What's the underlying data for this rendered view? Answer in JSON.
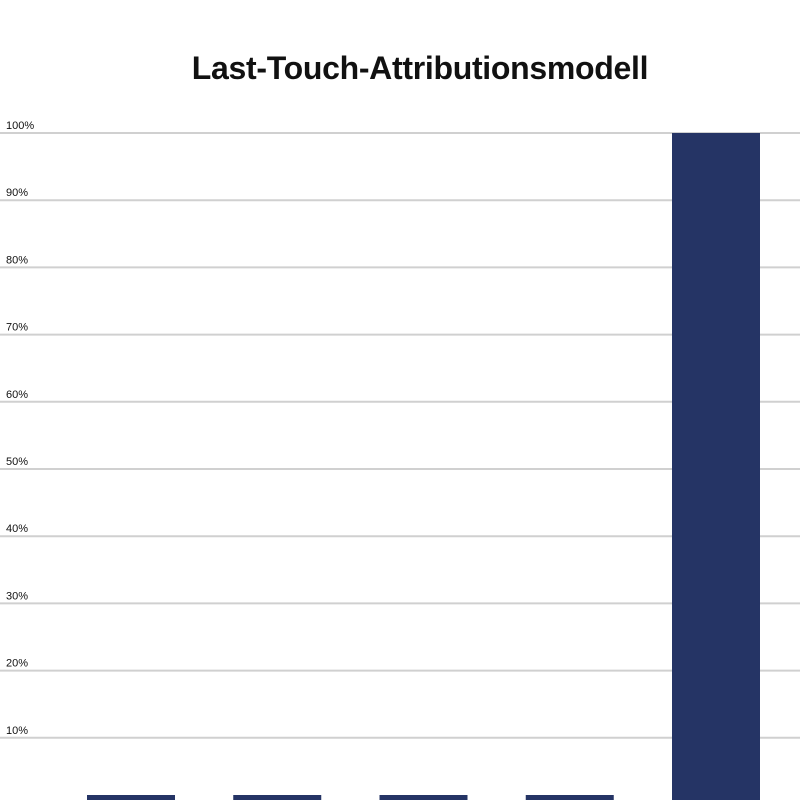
{
  "chart_data": {
    "type": "bar",
    "title": "Last-Touch-Attributionsmodell",
    "xlabel": "",
    "ylabel": "",
    "categories": [
      "",
      "",
      "",
      "",
      ""
    ],
    "values": [
      0,
      0,
      0,
      0,
      100
    ],
    "ylim": [
      0,
      100
    ],
    "yticks": [
      10,
      20,
      30,
      40,
      50,
      60,
      70,
      80,
      90,
      100
    ],
    "ytick_labels": [
      "10%",
      "20%",
      "30%",
      "40%",
      "50%",
      "60%",
      "70%",
      "80%",
      "90%",
      "100%"
    ],
    "bar_color": "#253465",
    "grid_color": "#d0d0d0",
    "grid": true,
    "legend": "none"
  }
}
